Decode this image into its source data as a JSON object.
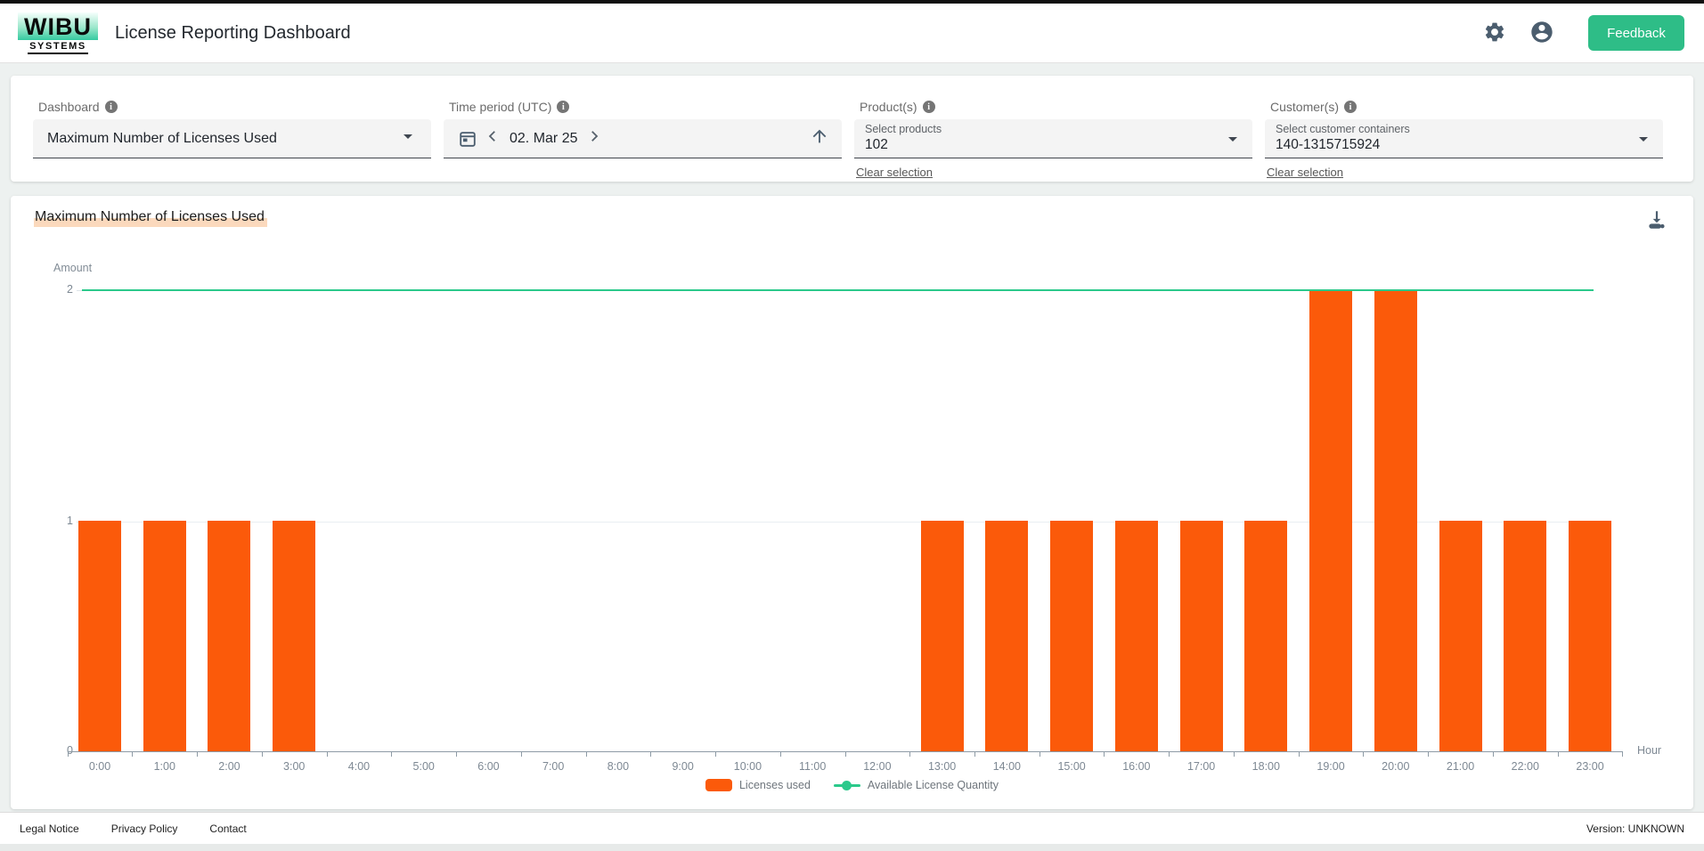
{
  "header": {
    "logo_line1": "WIBU",
    "logo_line2": "SYSTEMS",
    "title": "License Reporting Dashboard",
    "feedback_label": "Feedback"
  },
  "filters": {
    "dashboard": {
      "label": "Dashboard",
      "value": "Maximum Number of Licenses Used"
    },
    "time_period": {
      "label": "Time period (UTC)",
      "value": "02. Mar 25"
    },
    "products": {
      "label": "Product(s)",
      "placeholder": "Select products",
      "value": "102",
      "clear_label": "Clear selection"
    },
    "customers": {
      "label": "Customer(s)",
      "placeholder": "Select customer containers",
      "value": "140-1315715924",
      "clear_label": "Clear selection"
    }
  },
  "chart": {
    "title": "Maximum Number of Licenses Used"
  },
  "chart_data": {
    "type": "bar",
    "title": "Maximum Number of Licenses Used",
    "categories": [
      "0:00",
      "1:00",
      "2:00",
      "3:00",
      "4:00",
      "5:00",
      "6:00",
      "7:00",
      "8:00",
      "9:00",
      "10:00",
      "11:00",
      "12:00",
      "13:00",
      "14:00",
      "15:00",
      "16:00",
      "17:00",
      "18:00",
      "19:00",
      "20:00",
      "21:00",
      "22:00",
      "23:00"
    ],
    "series": [
      {
        "name": "Licenses used",
        "type": "bar",
        "color": "#fb5a0a",
        "values": [
          1,
          1,
          1,
          1,
          0,
          0,
          0,
          0,
          0,
          0,
          0,
          0,
          0,
          1,
          1,
          1,
          1,
          1,
          1,
          2,
          2,
          1,
          1,
          1
        ]
      },
      {
        "name": "Available License Quantity",
        "type": "line",
        "color": "#2bc98b",
        "values": [
          2,
          2,
          2,
          2,
          2,
          2,
          2,
          2,
          2,
          2,
          2,
          2,
          2,
          2,
          2,
          2,
          2,
          2,
          2,
          2,
          2,
          2,
          2,
          2
        ]
      }
    ],
    "xlabel": "Hour",
    "ylabel": "Amount",
    "ylim": [
      0,
      2
    ],
    "yticks": [
      0,
      1,
      2
    ],
    "grid": true,
    "legend_position": "bottom"
  },
  "colors": {
    "feedback_button": "#2ebd87",
    "bar_orange": "#fb5a0a",
    "line_green": "#2bc98b",
    "title_highlight": "#fbd9bd"
  },
  "footer": {
    "links": [
      "Legal Notice",
      "Privacy Policy",
      "Contact"
    ],
    "version": "Version: UNKNOWN"
  }
}
